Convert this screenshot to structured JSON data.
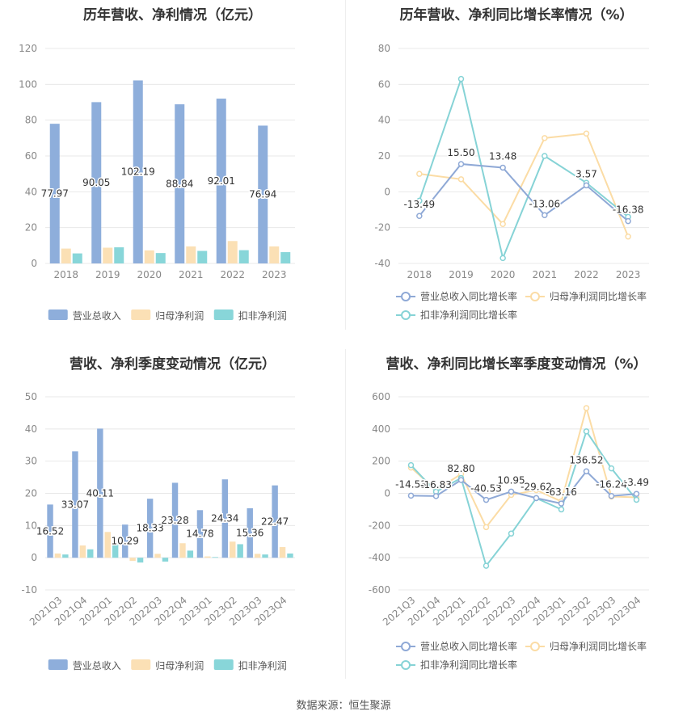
{
  "footer": {
    "label": "数据来源：",
    "source": "恒生聚源"
  },
  "colors": {
    "revenue": "#8eaedb",
    "parent_profit": "#fbe0b5",
    "deducted_profit": "#88d6d9",
    "rev_growth_line": "#8fa9d6",
    "parent_growth_line": "#fbdca5",
    "deducted_growth_line": "#86d3d6",
    "grid": "#e8e8e8",
    "axis_text": "#888888"
  },
  "chart_data": [
    {
      "type": "bar",
      "title": "历年营收、净利情况（亿元）",
      "categories": [
        "2018",
        "2019",
        "2020",
        "2021",
        "2022",
        "2023"
      ],
      "ylim": [
        0,
        120
      ],
      "yticks": [
        0,
        20,
        40,
        60,
        80,
        100,
        120
      ],
      "series": [
        {
          "name": "营业总收入",
          "values": [
            77.97,
            90.05,
            102.19,
            88.84,
            92.01,
            76.94
          ],
          "labels": [
            "77.97",
            "90.05",
            "102.19",
            "88.84",
            "92.01",
            "76.94"
          ]
        },
        {
          "name": "归母净利润",
          "values": [
            8.3,
            8.8,
            7.3,
            9.5,
            12.5,
            9.5
          ]
        },
        {
          "name": "扣非净利润",
          "values": [
            5.6,
            9.0,
            5.8,
            7.0,
            7.4,
            6.3
          ]
        }
      ],
      "legend": "bottom"
    },
    {
      "type": "line",
      "title": "历年营收、净利同比增长率情况（%）",
      "categories": [
        "2018",
        "2019",
        "2020",
        "2021",
        "2022",
        "2023"
      ],
      "ylim": [
        -40,
        80
      ],
      "yticks": [
        -40,
        -20,
        0,
        20,
        40,
        60,
        80
      ],
      "series": [
        {
          "name": "营业总收入同比增长率",
          "values": [
            -13.49,
            15.5,
            13.48,
            -13.06,
            3.57,
            -16.38
          ],
          "labels": [
            "-13.49",
            "15.50",
            "13.48",
            "-13.06",
            "3.57",
            "-16.38"
          ]
        },
        {
          "name": "归母净利润同比增长率",
          "values": [
            10,
            7,
            -18,
            30,
            32.5,
            -25
          ]
        },
        {
          "name": "扣非净利润同比增长率",
          "values": [
            -5,
            63,
            -37,
            20,
            5,
            -14
          ]
        }
      ],
      "legend": "bottom"
    },
    {
      "type": "bar",
      "title": "营收、净利季度变动情况（亿元）",
      "categories": [
        "2021Q3",
        "2021Q4",
        "2022Q1",
        "2022Q2",
        "2022Q3",
        "2022Q4",
        "2023Q1",
        "2023Q2",
        "2023Q3",
        "2023Q4"
      ],
      "ylim": [
        -10,
        50
      ],
      "yticks": [
        -10,
        0,
        10,
        20,
        30,
        40,
        50
      ],
      "series": [
        {
          "name": "营业总收入",
          "values": [
            16.52,
            33.07,
            40.11,
            10.29,
            18.33,
            23.28,
            14.78,
            24.34,
            15.36,
            22.47
          ],
          "labels": [
            "16.52",
            "33.07",
            "40.11",
            "10.29",
            "18.33",
            "23.28",
            "14.78",
            "24.34",
            "15.36",
            "22.47"
          ]
        },
        {
          "name": "归母净利润",
          "values": [
            1.3,
            3.8,
            8.0,
            -1.0,
            1.2,
            4.5,
            0.4,
            5.0,
            1.2,
            3.3
          ]
        },
        {
          "name": "扣非净利润",
          "values": [
            1.0,
            2.6,
            4.5,
            -1.5,
            -1.2,
            2.2,
            0.2,
            4.2,
            1.0,
            1.3
          ]
        }
      ],
      "legend": "bottom"
    },
    {
      "type": "line",
      "title": "营收、净利同比增长率季度变动情况（%）",
      "categories": [
        "2021Q3",
        "2021Q4",
        "2022Q1",
        "2022Q2",
        "2022Q3",
        "2022Q4",
        "2023Q1",
        "2023Q2",
        "2023Q3",
        "2023Q4"
      ],
      "ylim": [
        -600,
        600
      ],
      "yticks": [
        -600,
        -400,
        -200,
        0,
        200,
        400,
        600
      ],
      "series": [
        {
          "name": "营业总收入同比增长率",
          "values": [
            -14.53,
            -16.83,
            82.8,
            -40.53,
            10.95,
            -29.62,
            -63.16,
            136.52,
            -16.24,
            -3.49
          ],
          "labels": [
            "-14.53",
            "-16.83",
            "82.80",
            "-40.53",
            "10.95",
            "-29.62",
            "-63.16",
            "136.52",
            "-16.24",
            "-3.49"
          ]
        },
        {
          "name": "归母净利润同比增长率",
          "values": [
            160,
            20,
            120,
            -210,
            -10,
            20,
            -50,
            530,
            -20,
            -25
          ]
        },
        {
          "name": "扣非净利润同比增长率",
          "values": [
            175,
            10,
            95,
            -450,
            -250,
            -30,
            -100,
            385,
            155,
            -40
          ]
        }
      ],
      "legend": "bottom"
    }
  ]
}
